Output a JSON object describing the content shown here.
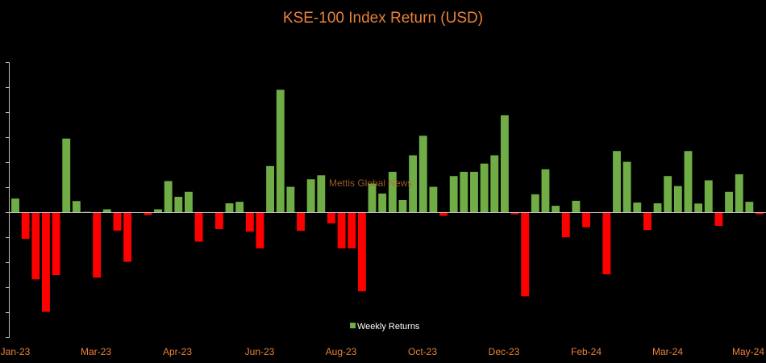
{
  "chart_data": {
    "type": "bar",
    "title": "KSE-100 Index Return (USD)",
    "xlabel": "",
    "ylabel": "",
    "x_tick_labels": [
      "Jan-23",
      "Mar-23",
      "Apr-23",
      "Jun-23",
      "Aug-23",
      "Oct-23",
      "Dec-23",
      "Feb-24",
      "Mar-24",
      "May-24"
    ],
    "ylim": [
      -5,
      6
    ],
    "grid": false,
    "legend_position": "bottom-center",
    "series": [
      {
        "name": "Weekly Returns",
        "positive_color": "#70ad47",
        "negative_color": "#ff0000",
        "values": [
          0.56,
          -1.05,
          -2.67,
          -3.97,
          -2.5,
          2.96,
          0.46,
          0.03,
          -2.6,
          0.13,
          -0.72,
          -1.97,
          0.0,
          -0.1,
          0.13,
          1.26,
          0.63,
          0.83,
          -1.16,
          0.0,
          -0.66,
          0.37,
          0.43,
          -0.76,
          -1.43,
          1.86,
          4.91,
          1.03,
          -0.73,
          1.33,
          1.49,
          -0.43,
          -1.43,
          -1.43,
          -3.15,
          1.16,
          0.76,
          1.63,
          0.5,
          2.29,
          3.07,
          1.03,
          -0.13,
          1.46,
          1.63,
          1.63,
          1.96,
          2.29,
          3.89,
          -0.07,
          -3.35,
          0.73,
          1.73,
          0.27,
          -0.99,
          0.47,
          -0.59,
          0.0,
          -2.47,
          2.46,
          2.03,
          0.4,
          -0.7,
          0.37,
          1.46,
          1.06,
          2.46,
          0.36,
          1.29,
          -0.53,
          0.83,
          1.53,
          0.43,
          -0.07
        ]
      }
    ]
  },
  "watermark": "Mettis Global News"
}
